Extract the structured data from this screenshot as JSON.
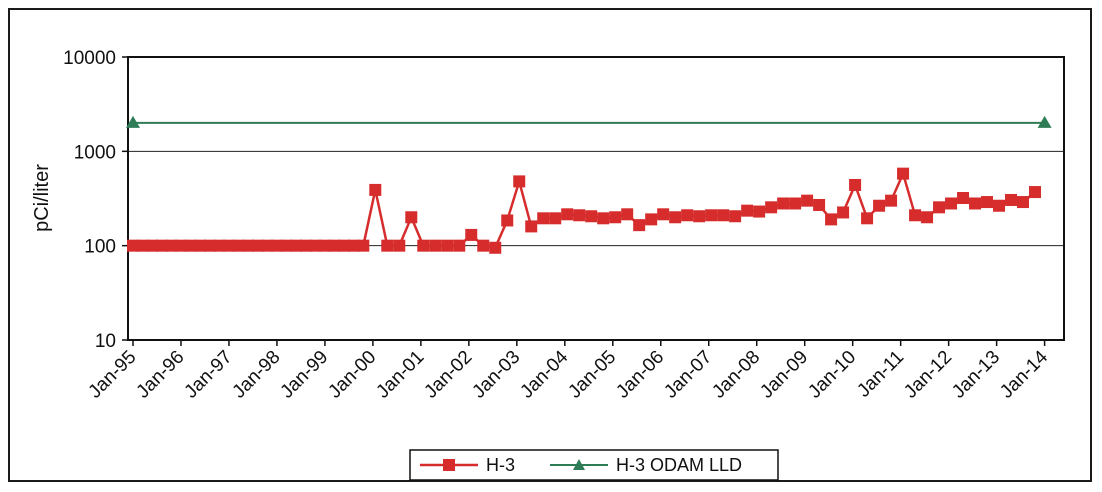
{
  "chart_data": {
    "type": "line",
    "title": "",
    "xlabel": "",
    "ylabel": "pCi/liter",
    "yscale": "log",
    "ylim": [
      10,
      10000
    ],
    "yticks": [
      "10",
      "100",
      "1000",
      "10000"
    ],
    "xlim": [
      1995.0,
      2014.3
    ],
    "xticks": [
      "Jan-95",
      "Jan-96",
      "Jan-97",
      "Jan-98",
      "Jan-99",
      "Jan-00",
      "Jan-01",
      "Jan-02",
      "Jan-03",
      "Jan-04",
      "Jan-05",
      "Jan-06",
      "Jan-07",
      "Jan-08",
      "Jan-09",
      "Jan-10",
      "Jan-11",
      "Jan-12",
      "Jan-13",
      "Jan-14"
    ],
    "grid": "horizontal major lines",
    "legend": "bottom-center",
    "series": [
      {
        "name": "H-3",
        "color": "#d62c2c",
        "marker": "square",
        "x": [
          1995.0,
          1995.2,
          1995.4,
          1995.6,
          1995.8,
          1996.0,
          1996.2,
          1996.4,
          1996.6,
          1996.8,
          1997.0,
          1997.2,
          1997.4,
          1997.6,
          1997.8,
          1998.0,
          1998.2,
          1998.4,
          1998.6,
          1998.8,
          1999.0,
          1999.2,
          1999.4,
          1999.6,
          1999.8,
          2000.05,
          2000.3,
          2000.55,
          2000.8,
          2001.05,
          2001.3,
          2001.55,
          2001.8,
          2002.05,
          2002.3,
          2002.55,
          2002.8,
          2003.05,
          2003.3,
          2003.55,
          2003.8,
          2004.05,
          2004.3,
          2004.55,
          2004.8,
          2005.05,
          2005.3,
          2005.55,
          2005.8,
          2006.05,
          2006.3,
          2006.55,
          2006.8,
          2007.05,
          2007.3,
          2007.55,
          2007.8,
          2008.05,
          2008.3,
          2008.55,
          2008.8,
          2009.05,
          2009.3,
          2009.55,
          2009.8,
          2010.05,
          2010.3,
          2010.55,
          2010.8,
          2011.05,
          2011.3,
          2011.55,
          2011.8,
          2012.05,
          2012.3,
          2012.55,
          2012.8,
          2013.05,
          2013.3,
          2013.55,
          2013.8
        ],
        "y": [
          100,
          100,
          100,
          100,
          100,
          100,
          100,
          100,
          100,
          100,
          100,
          100,
          100,
          100,
          100,
          100,
          100,
          100,
          100,
          100,
          100,
          100,
          100,
          100,
          100,
          390,
          100,
          100,
          200,
          100,
          100,
          100,
          100,
          130,
          100,
          95,
          185,
          480,
          160,
          195,
          195,
          215,
          210,
          205,
          195,
          200,
          215,
          165,
          190,
          215,
          200,
          210,
          205,
          210,
          210,
          205,
          235,
          230,
          255,
          280,
          280,
          300,
          270,
          190,
          225,
          440,
          195,
          265,
          300,
          580,
          210,
          200,
          255,
          280,
          320,
          280,
          290,
          265,
          305,
          290,
          370
        ]
      },
      {
        "name": "H-3 ODAM LLD",
        "color": "#2e7d57",
        "marker": "triangle",
        "x": [
          1995.0,
          2014.0
        ],
        "y": [
          2000,
          2000
        ]
      }
    ]
  }
}
